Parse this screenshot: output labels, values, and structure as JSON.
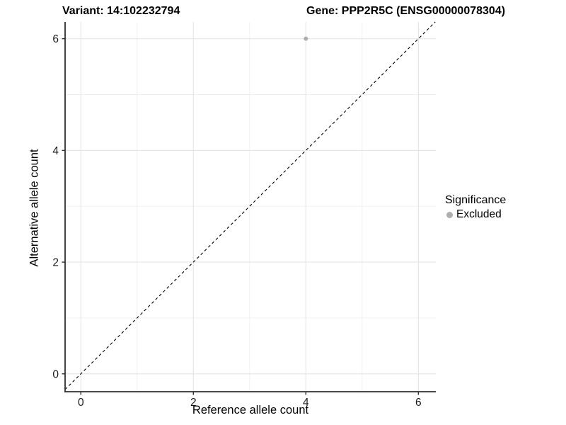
{
  "titles": {
    "left": "Variant: 14:102232794",
    "right": "Gene: PPP2R5C (ENSG00000078304)"
  },
  "chart_data": {
    "type": "scatter",
    "xlabel": "Reference allele count",
    "ylabel": "Alternative allele count",
    "x_ticks": [
      0,
      2,
      4,
      6
    ],
    "y_ticks": [
      0,
      2,
      4,
      6
    ],
    "x_minor_ticks": [
      1,
      3,
      5
    ],
    "y_minor_ticks": [
      1,
      3,
      5
    ],
    "xlim": [
      -0.28,
      6.31
    ],
    "ylim": [
      -0.32,
      6.3
    ],
    "grid": true,
    "points": [
      {
        "x": 4,
        "y": 6,
        "series": "Excluded"
      }
    ],
    "reference_line": {
      "kind": "identity y=x",
      "style": "dashed",
      "color": "#000000"
    },
    "legend": {
      "title": "Significance",
      "position": "right",
      "entries": [
        {
          "label": "Excluded",
          "color": "#aeaeae"
        }
      ]
    },
    "colors": {
      "point": "#aeaeae",
      "grid_major": "#e4e4e4",
      "grid_minor": "#efefef",
      "axis_line": "#2f2f2f",
      "tick_text": "#1a1a1a"
    }
  }
}
